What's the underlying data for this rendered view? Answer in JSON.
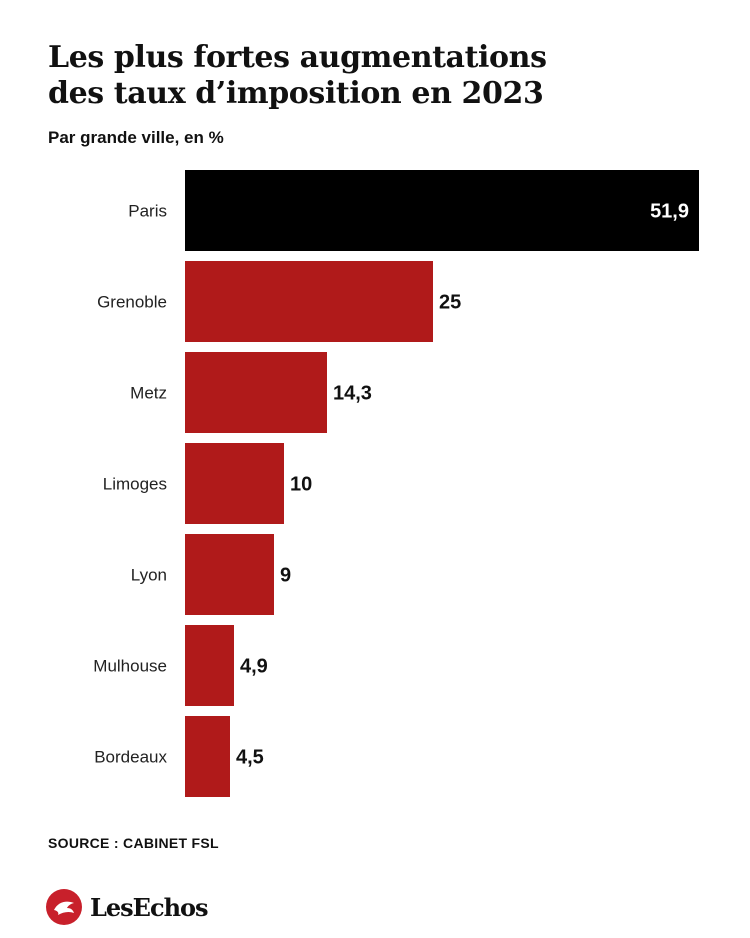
{
  "header": {
    "title_line1": "Les plus fortes augmentations",
    "title_line2": "des taux d’imposition en 2023",
    "subtitle": "Par grande ville, en %"
  },
  "chart_data": {
    "type": "bar",
    "orientation": "horizontal",
    "title": "Les plus fortes augmentations des taux d’imposition en 2023",
    "subtitle": "Par grande ville, en %",
    "categories": [
      "Paris",
      "Grenoble",
      "Metz",
      "Limoges",
      "Lyon",
      "Mulhouse",
      "Bordeaux"
    ],
    "values": [
      51.9,
      25,
      14.3,
      10,
      9,
      4.9,
      4.5
    ],
    "value_labels": [
      "51,9",
      "25",
      "14,3",
      "10",
      "9",
      "4,9",
      "4,5"
    ],
    "xlim": [
      0,
      51.9
    ],
    "grid": false,
    "legend": "none",
    "colors": {
      "highlight": "#000000",
      "default": "#b01a1a",
      "label_on_bar": "#ffffff",
      "label_outside": "#111111"
    }
  },
  "footer": {
    "source": "SOURCE : CABINET FSL",
    "brand": "LesEchos",
    "brand_icon": "les-echos-logo-icon",
    "brand_color": "#c8202b"
  }
}
